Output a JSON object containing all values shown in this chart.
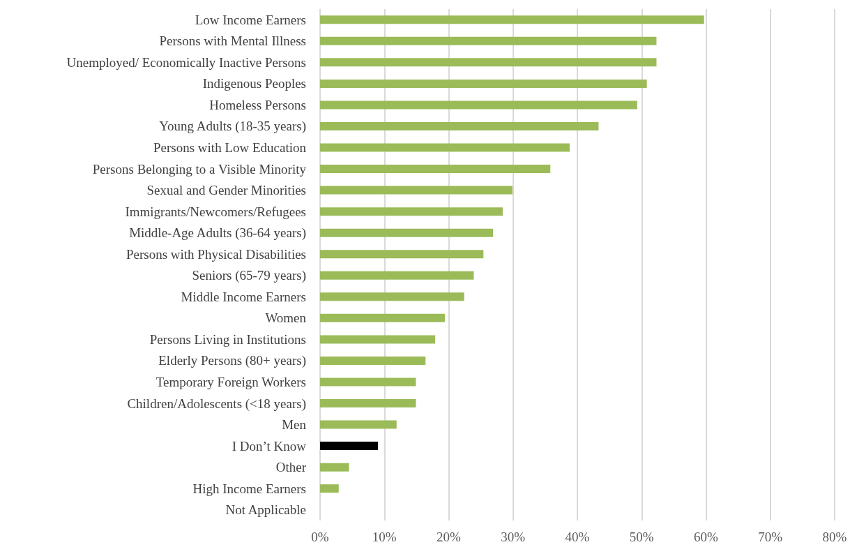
{
  "chart_data": {
    "type": "bar",
    "orientation": "horizontal",
    "categories": [
      "Low Income Earners",
      "Persons with Mental Illness",
      "Unemployed/ Economically Inactive Persons",
      "Indigenous Peoples",
      "Homeless Persons",
      "Young Adults (18-35 years)",
      "Persons with Low Education",
      "Persons Belonging to a Visible Minority",
      "Sexual and Gender Minorities",
      "Immigrants/Newcomers/Refugees",
      "Middle-Age Adults (36-64 years)",
      "Persons with Physical Disabilities",
      "Seniors (65-79 years)",
      "Middle Income Earners",
      "Women",
      "Persons Living in Institutions",
      "Elderly Persons (80+ years)",
      "Temporary Foreign Workers",
      "Children/Adolescents (<18 years)",
      "Men",
      "I Don’t Know",
      "Other",
      "High Income Earners",
      "Not Applicable"
    ],
    "values": [
      59.7,
      52.3,
      52.3,
      50.8,
      49.3,
      43.3,
      38.8,
      35.8,
      29.9,
      28.4,
      26.9,
      25.4,
      23.9,
      22.4,
      19.4,
      17.9,
      16.4,
      14.9,
      14.9,
      11.9,
      9.0,
      4.5,
      2.9,
      0
    ],
    "colors": [
      "#9bbb59",
      "#9bbb59",
      "#9bbb59",
      "#9bbb59",
      "#9bbb59",
      "#9bbb59",
      "#9bbb59",
      "#9bbb59",
      "#9bbb59",
      "#9bbb59",
      "#9bbb59",
      "#9bbb59",
      "#9bbb59",
      "#9bbb59",
      "#9bbb59",
      "#9bbb59",
      "#9bbb59",
      "#9bbb59",
      "#9bbb59",
      "#9bbb59",
      "#000000",
      "#9bbb59",
      "#9bbb59",
      "#9bbb59"
    ],
    "xlim": [
      0,
      80
    ],
    "xticks": [
      {
        "value": 0,
        "label": "0%"
      },
      {
        "value": 10,
        "label": "10%"
      },
      {
        "value": 20,
        "label": "20%"
      },
      {
        "value": 30,
        "label": "30%"
      },
      {
        "value": 40,
        "label": "40%"
      },
      {
        "value": 50,
        "label": "50%"
      },
      {
        "value": 60,
        "label": "60%"
      },
      {
        "value": 70,
        "label": "70%"
      },
      {
        "value": 80,
        "label": "80%"
      }
    ],
    "grid": "x"
  }
}
